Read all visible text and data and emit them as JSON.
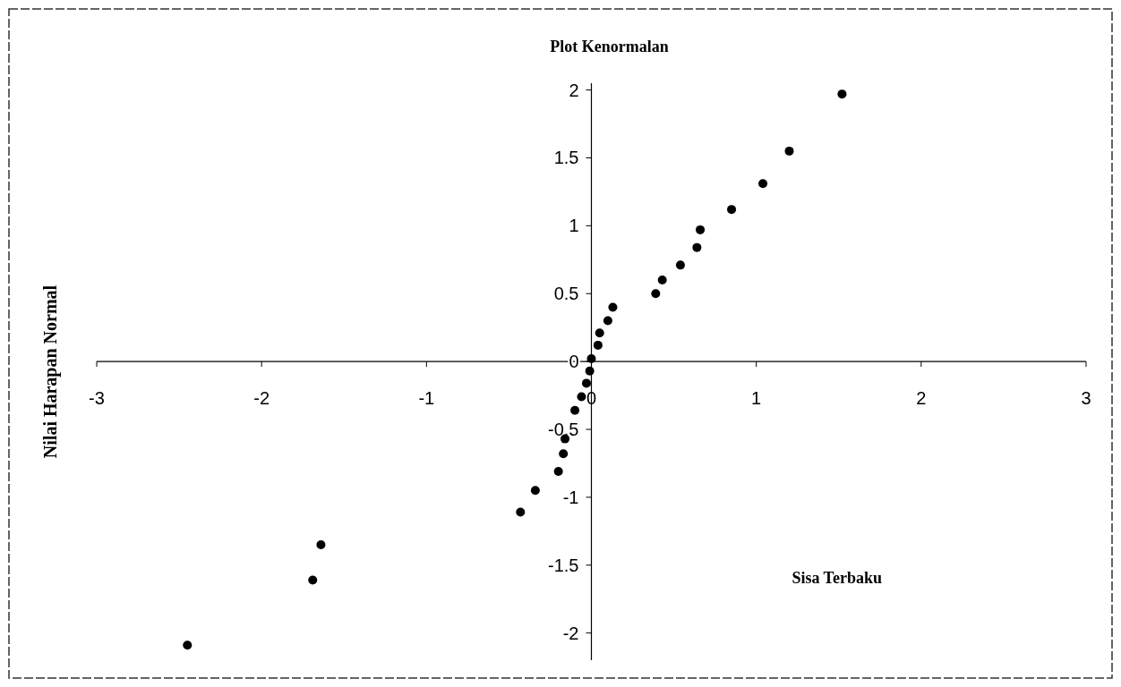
{
  "chart_data": {
    "type": "scatter",
    "title": "Plot Kenormalan",
    "xlabel": "Sisa Terbaku",
    "ylabel": "Nilai Harapan Normal",
    "xlim": [
      -3,
      3
    ],
    "xticks": [
      -3,
      -2,
      -1,
      0,
      1,
      2,
      3
    ],
    "ylim": [
      -2.2,
      2.05
    ],
    "yticks": [
      -2,
      -1.5,
      -1,
      -0.5,
      0,
      0.5,
      1,
      1.5,
      2
    ],
    "grid": false,
    "marker": "circle",
    "series": [
      {
        "color": "#000000",
        "x": [
          -2.45,
          -1.69,
          -1.64,
          -0.43,
          -0.34,
          -0.2,
          -0.17,
          -0.16,
          -0.1,
          -0.06,
          -0.03,
          -0.01,
          0.0,
          0.04,
          0.05,
          0.1,
          0.13,
          0.39,
          0.43,
          0.54,
          0.64,
          0.66,
          0.85,
          1.04,
          1.2,
          1.52
        ],
        "values": [
          -2.09,
          -1.61,
          -1.35,
          -1.11,
          -0.95,
          -0.81,
          -0.68,
          -0.57,
          -0.36,
          -0.26,
          -0.16,
          -0.07,
          0.02,
          0.12,
          0.21,
          0.3,
          0.4,
          0.5,
          0.6,
          0.71,
          0.84,
          0.97,
          1.12,
          1.31,
          1.55,
          1.97
        ]
      }
    ]
  }
}
